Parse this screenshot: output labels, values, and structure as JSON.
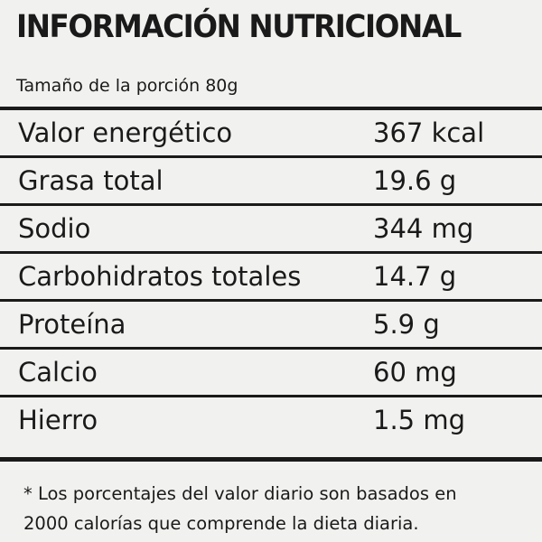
{
  "header": {
    "title": "INFORMACIÓN NUTRICIONAL",
    "serving": "Tamaño de la porción 80g"
  },
  "table": {
    "rows": [
      [
        "Valor energético",
        "367 kcal"
      ],
      [
        "Grasa  total",
        "19.6 g"
      ],
      [
        "Sodio",
        "344 mg"
      ],
      [
        "Carbohidratos totales",
        "14.7 g"
      ],
      [
        "Proteína",
        "5.9 g"
      ],
      [
        "Calcio",
        "60 mg"
      ],
      [
        "Hierro",
        "1.5 mg"
      ]
    ]
  },
  "footnote": {
    "lines": [
      "* Los porcentajes del valor diario son basados en",
      "2000 calorías que comprende la dieta diaria."
    ]
  }
}
